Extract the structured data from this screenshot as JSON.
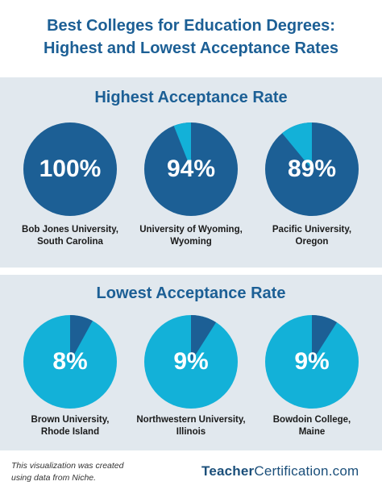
{
  "title": {
    "line1": "Best Colleges for Education Degrees:",
    "line2": "Highest and Lowest Acceptance Rates"
  },
  "colors": {
    "dark_blue": "#1c5f95",
    "light_blue": "#13b1d8",
    "panel_bg": "#e1e8ee",
    "brand": "#1b4f7a"
  },
  "chart_data": [
    {
      "type": "pie",
      "title": "Highest Acceptance Rate",
      "unit": "%",
      "items": [
        {
          "label_line1": "Bob Jones University,",
          "label_line2": "South Carolina",
          "value": 100,
          "value_label": "100%"
        },
        {
          "label_line1": "University of Wyoming,",
          "label_line2": "Wyoming",
          "value": 94,
          "value_label": "94%"
        },
        {
          "label_line1": "Pacific University,",
          "label_line2": "Oregon",
          "value": 89,
          "value_label": "89%"
        }
      ]
    },
    {
      "type": "pie",
      "title": "Lowest Acceptance Rate",
      "unit": "%",
      "items": [
        {
          "label_line1": "Brown University,",
          "label_line2": "Rhode Island",
          "value": 8,
          "value_label": "8%"
        },
        {
          "label_line1": "Northwestern University,",
          "label_line2": "Illinois",
          "value": 9,
          "value_label": "9%"
        },
        {
          "label_line1": "Bowdoin College,",
          "label_line2": "Maine",
          "value": 9,
          "value_label": "9%"
        }
      ]
    }
  ],
  "footer": {
    "note_line1": "This visualization was created",
    "note_line2": "using data from Niche.",
    "brand_part1": "Teacher",
    "brand_part2": "Certification.com"
  }
}
